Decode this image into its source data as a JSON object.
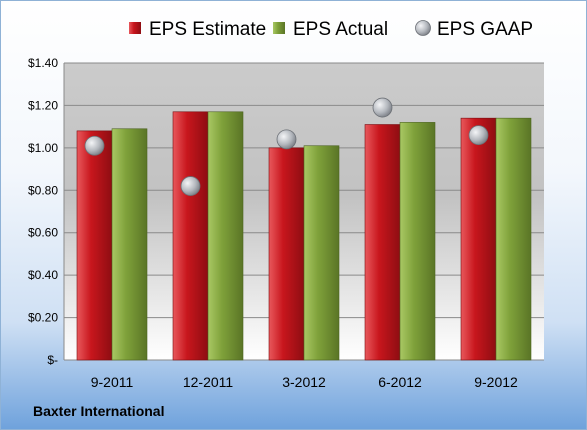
{
  "chart_data": {
    "type": "bar",
    "title": "",
    "xlabel": "",
    "ylabel": "",
    "categories": [
      "9-2011",
      "12-2011",
      "3-2012",
      "6-2012",
      "9-2012"
    ],
    "series": [
      {
        "name": "EPS Estimate",
        "kind": "bar",
        "color": "#c8161d",
        "values": [
          1.08,
          1.17,
          1.0,
          1.11,
          1.14
        ]
      },
      {
        "name": "EPS Actual",
        "kind": "bar",
        "color": "#7fa13a",
        "values": [
          1.09,
          1.17,
          1.01,
          1.12,
          1.14
        ]
      },
      {
        "name": "EPS GAAP",
        "kind": "scatter",
        "color": "#b4b8be",
        "values": [
          1.01,
          0.82,
          1.04,
          1.19,
          1.06
        ]
      }
    ],
    "ylim": [
      0,
      1.4
    ],
    "yticks": [
      0,
      0.2,
      0.4,
      0.6,
      0.8,
      1.0,
      1.2,
      1.4
    ],
    "ytick_labels": [
      "$-",
      "$0.20",
      "$0.40",
      "$0.60",
      "$0.80",
      "$1.00",
      "$1.20",
      "$1.40"
    ],
    "grid": true,
    "legend_position": "top"
  },
  "footer": {
    "company": "Baxter International"
  }
}
